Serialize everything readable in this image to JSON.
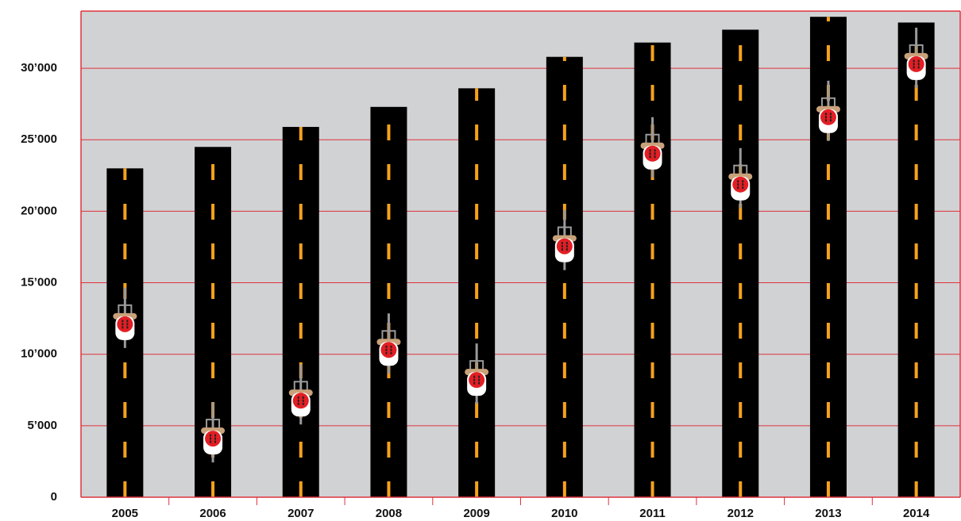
{
  "chart_data": {
    "type": "bar",
    "categories": [
      "2005",
      "2006",
      "2007",
      "2008",
      "2009",
      "2010",
      "2011",
      "2012",
      "2013",
      "2014"
    ],
    "series": [
      {
        "type": "bar",
        "color": "#000000",
        "values": [
          23000,
          24500,
          25900,
          27300,
          28600,
          30800,
          31800,
          32700,
          33600,
          33200
        ]
      },
      {
        "type": "cyclist",
        "color": "#e31e24",
        "values": [
          12100,
          4100,
          6750,
          10300,
          8200,
          17550,
          24030,
          21870,
          26580,
          30290
        ]
      }
    ],
    "ylim": [
      0,
      34000
    ],
    "yticks": [
      0,
      {
        "value": 5000,
        "label": "5’000"
      },
      {
        "value": 10000,
        "label": "10’000"
      },
      {
        "value": 15000,
        "label": "15’000"
      },
      {
        "value": 20000,
        "label": "20’000"
      },
      {
        "value": 25000,
        "label": "25’000"
      },
      {
        "value": 30000,
        "label": "30’000"
      }
    ],
    "grid": true,
    "grid_color": "#e0323c",
    "background": "#d1d2d4"
  }
}
